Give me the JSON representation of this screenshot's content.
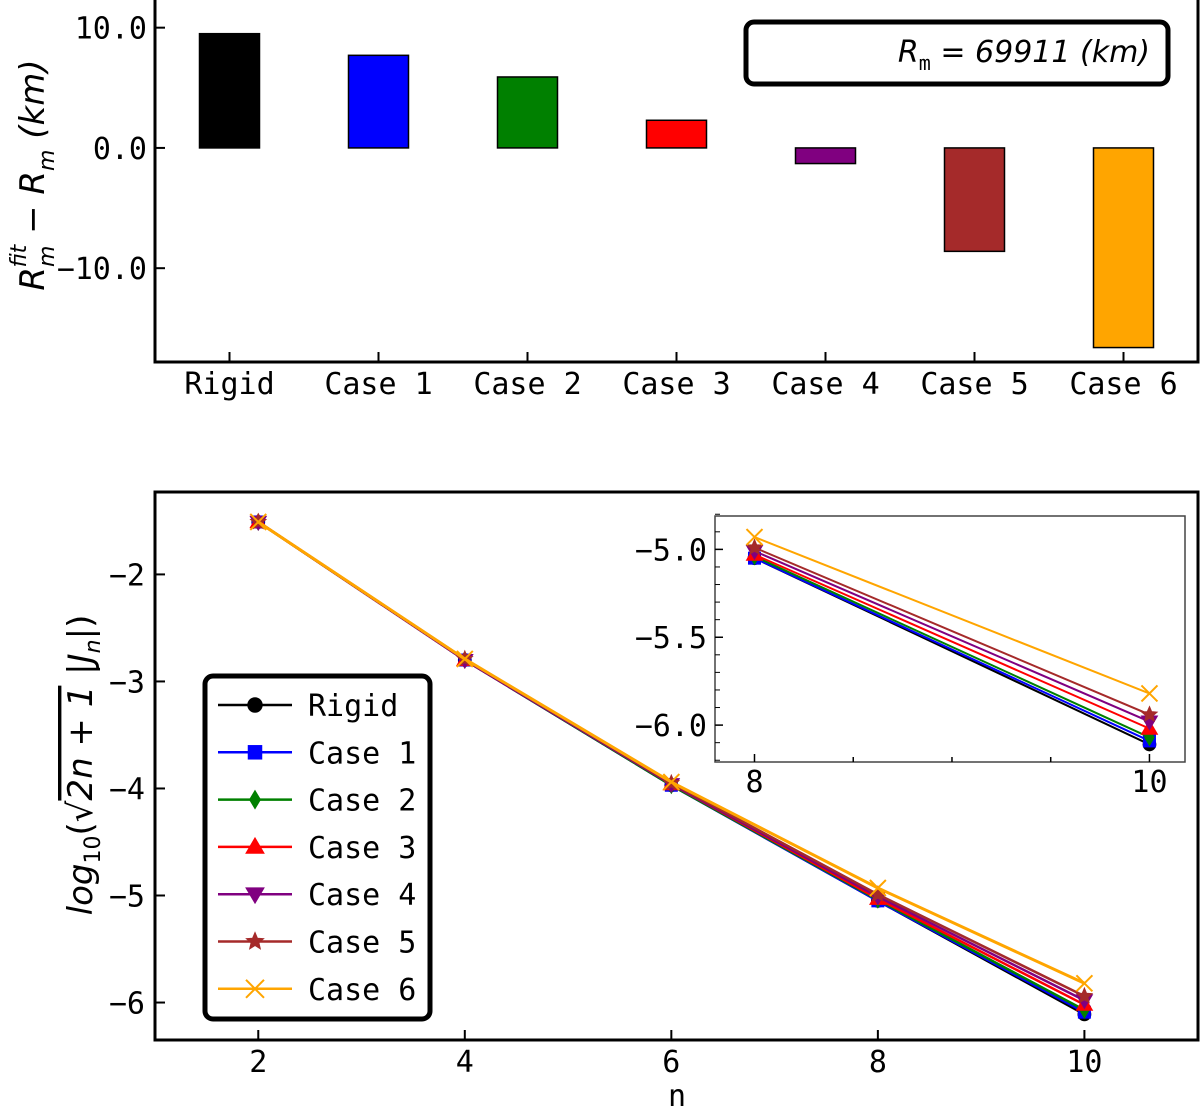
{
  "chart_data": [
    {
      "type": "bar",
      "categories": [
        "Rigid",
        "Case 1",
        "Case 2",
        "Case 3",
        "Case 4",
        "Case 5",
        "Case 6"
      ],
      "values": [
        9.5,
        7.7,
        5.9,
        2.3,
        -1.3,
        -8.6,
        -16.6
      ],
      "colors": [
        "#000000",
        "#0000ff",
        "#008000",
        "#ff0000",
        "#800080",
        "#a52a2a",
        "#ffa500"
      ],
      "ylabel": "R_m^fit − R_m (km)",
      "ylabel_parts": {
        "r": "R",
        "sub": "m",
        "sup": "fit",
        "minus": " − ",
        "r2": "R",
        "sub2": "m",
        "unit": " (km)"
      },
      "yticks": [
        10.0,
        0.0,
        -10.0
      ],
      "ytick_labels": [
        "10.0",
        "0.0",
        "−10.0"
      ],
      "ylim": [
        -17.8,
        12.3
      ],
      "annotation": {
        "lhs": "R",
        "sub": "m",
        "rhs": " = 69911 (km)"
      },
      "grid": false
    },
    {
      "type": "line",
      "x": [
        2,
        4,
        6,
        8,
        10
      ],
      "xlabel": "n",
      "ylabel": "log10(√(2n+1) |Jn|)",
      "ylabel_parts": {
        "log": "log",
        "sub": "10",
        "open": "(√",
        "rad": "2n + 1",
        "abs": " |J",
        "n": "n",
        "close": "|)"
      },
      "xticks": [
        2,
        4,
        6,
        8,
        10
      ],
      "yticks": [
        -2,
        -3,
        -4,
        -5,
        -6
      ],
      "ytick_labels": [
        "−2",
        "−3",
        "−4",
        "−5",
        "−6"
      ],
      "xlim": [
        1,
        11.1
      ],
      "ylim": [
        -6.35,
        -1.23
      ],
      "legend_position": "lower-left",
      "grid": false,
      "series": [
        {
          "name": "Rigid",
          "color": "#000000",
          "marker": "circle",
          "values": [
            -1.51,
            -2.8,
            -3.97,
            -5.05,
            -6.11
          ]
        },
        {
          "name": "Case 1",
          "color": "#0000ff",
          "marker": "square",
          "values": [
            -1.51,
            -2.8,
            -3.97,
            -5.05,
            -6.09
          ]
        },
        {
          "name": "Case 2",
          "color": "#008000",
          "marker": "diamond",
          "values": [
            -1.51,
            -2.8,
            -3.97,
            -5.04,
            -6.07
          ]
        },
        {
          "name": "Case 3",
          "color": "#ff0000",
          "marker": "triangle-up",
          "values": [
            -1.51,
            -2.8,
            -3.96,
            -5.03,
            -6.02
          ]
        },
        {
          "name": "Case 4",
          "color": "#800080",
          "marker": "triangle-down",
          "values": [
            -1.51,
            -2.8,
            -3.96,
            -5.01,
            -5.98
          ]
        },
        {
          "name": "Case 5",
          "color": "#a52a2a",
          "marker": "star",
          "values": [
            -1.51,
            -2.79,
            -3.95,
            -4.99,
            -5.94
          ]
        },
        {
          "name": "Case 6",
          "color": "#ffa500",
          "marker": "x",
          "values": [
            -1.51,
            -2.79,
            -3.94,
            -4.93,
            -5.82
          ]
        }
      ],
      "inset": {
        "xlim": [
          7.8,
          10.18
        ],
        "ylim": [
          -6.21,
          -4.81
        ],
        "xticks": [
          8,
          10
        ],
        "yticks": [
          -5.0,
          -5.5,
          -6.0
        ],
        "ytick_labels": [
          "−5.0",
          "−5.5",
          "−6.0"
        ],
        "x_index_range": [
          3,
          4
        ]
      }
    }
  ]
}
